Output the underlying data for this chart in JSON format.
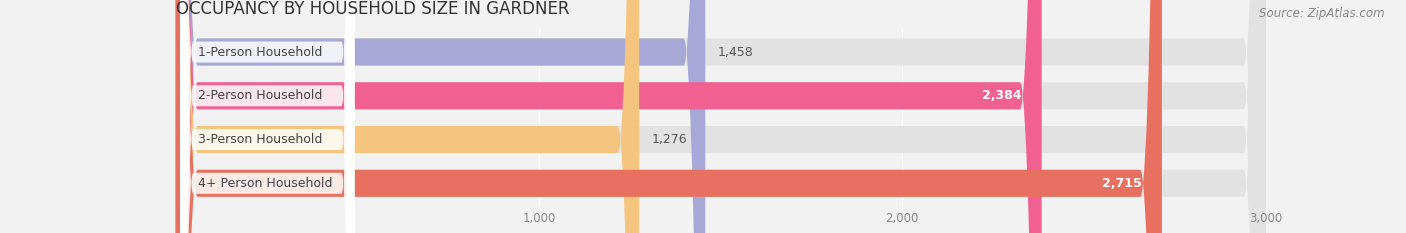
{
  "title": "OCCUPANCY BY HOUSEHOLD SIZE IN GARDNER",
  "source": "Source: ZipAtlas.com",
  "categories": [
    "1-Person Household",
    "2-Person Household",
    "3-Person Household",
    "4+ Person Household"
  ],
  "values": [
    1458,
    2384,
    1276,
    2715
  ],
  "bar_colors": [
    "#a8a8d8",
    "#f06090",
    "#f5c580",
    "#e87060"
  ],
  "value_label_colors": [
    "#555555",
    "#ffffff",
    "#555555",
    "#ffffff"
  ],
  "xlim_max": 3000,
  "xticks": [
    1000,
    2000,
    3000
  ],
  "xtick_labels": [
    "1,000",
    "2,000",
    "3,000"
  ],
  "background_color": "#f2f2f2",
  "bar_bg_color": "#e2e2e2",
  "title_fontsize": 12,
  "source_fontsize": 8.5,
  "bar_label_fontsize": 9,
  "value_fontsize": 9,
  "bar_height": 0.62,
  "value_labels": [
    "1,458",
    "2,384",
    "1,276",
    "2,715"
  ],
  "label_pill_color": "#ffffff",
  "label_pill_alpha": 0.85
}
